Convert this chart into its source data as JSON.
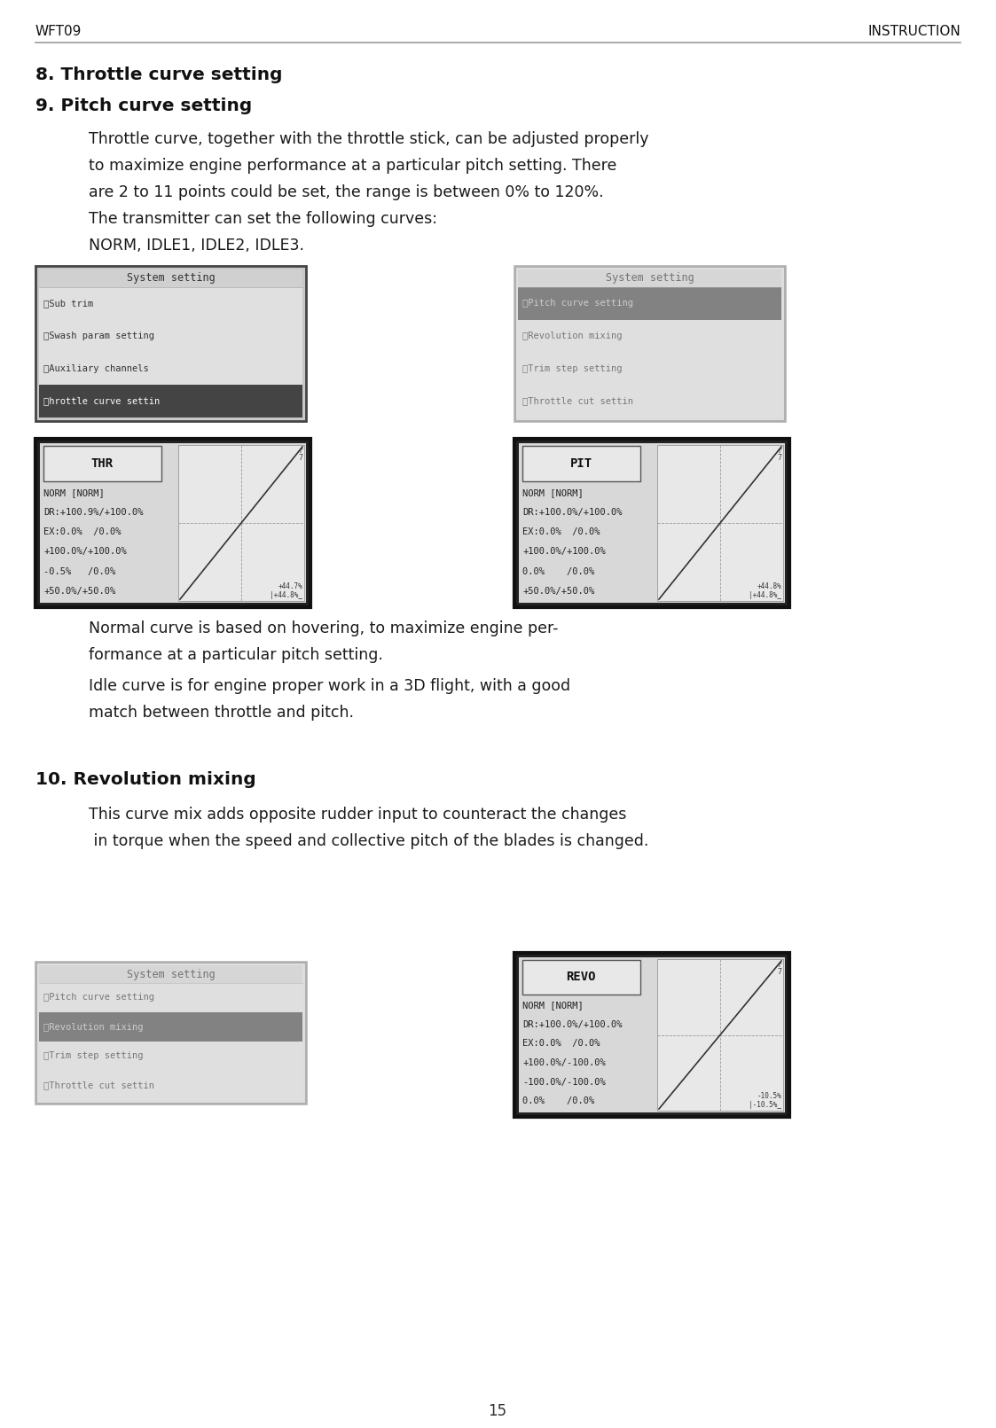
{
  "page_width": 11.23,
  "page_height": 16.11,
  "bg_color": "#ffffff",
  "header_left": "WFT09",
  "header_right": "INSTRUCTION",
  "header_font_size": 11,
  "section8_title": "8. Throttle curve setting",
  "section9_title": "9. Pitch curve setting",
  "body_indent": 0.09,
  "body_text_1": "Throttle curve, together with the throttle stick, can be adjusted properly",
  "body_text_2": "to maximize engine performance at a particular pitch setting. There",
  "body_text_3": "are 2 to 11 points could be set, the range is between 0% to 120%.",
  "body_text_4": "The transmitter can set the following curves:",
  "body_text_5": "NORM, IDLE1, IDLE2, IDLE3.",
  "body_font_size": 12.5,
  "normal_text_color": "#1a1a1a",
  "normal_text1": "Normal curve is based on hovering, to maximize engine per-",
  "normal_text2": "formance at a particular pitch setting.",
  "normal_text3": "Idle curve is for engine proper work in a 3D flight, with a good",
  "normal_text4": "match between throttle and pitch.",
  "section10_title": "10. Revolution mixing",
  "rev_text1": "This curve mix adds opposite rudder input to counteract the changes",
  "rev_text2": " in torque when the speed and collective pitch of the blades is changed.",
  "footer_text": "15"
}
